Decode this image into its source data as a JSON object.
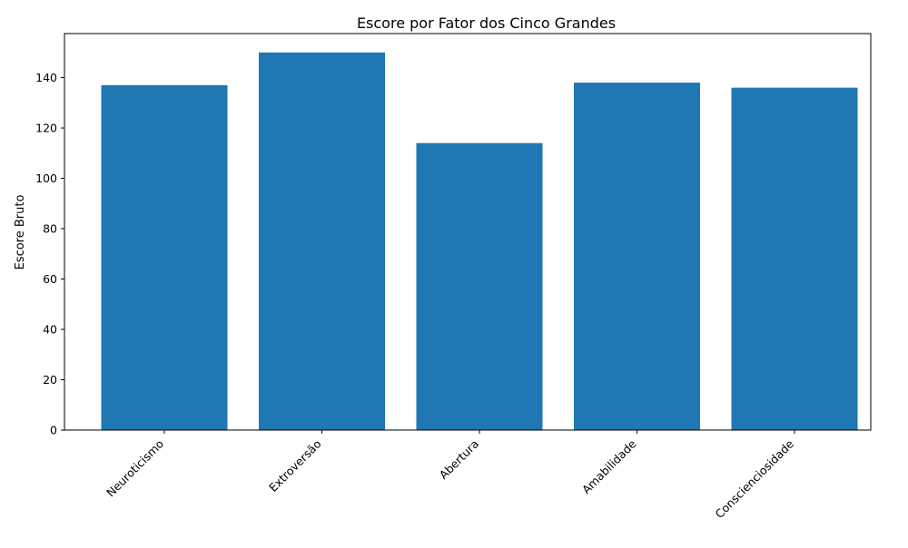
{
  "chart_data": {
    "type": "bar",
    "title": "Escore por Fator dos Cinco Grandes",
    "xlabel": "",
    "ylabel": "Escore Bruto",
    "categories": [
      "Neuroticismo",
      "Extroversão",
      "Abertura",
      "Amabilidade",
      "Conscienciosidade"
    ],
    "values": [
      137,
      150,
      114,
      138,
      136
    ],
    "ylim": [
      0,
      157.5
    ],
    "yticks": [
      0,
      20,
      40,
      60,
      80,
      100,
      120,
      140
    ],
    "grid": false,
    "legend": "none",
    "bar_color": "#1f77b4",
    "xtick_rotation": 45
  }
}
